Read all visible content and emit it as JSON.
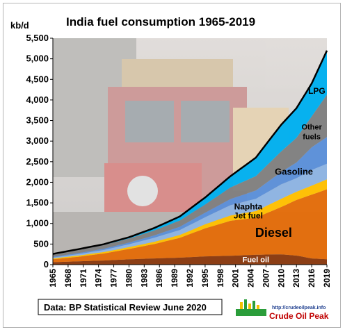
{
  "chart_data": {
    "type": "area",
    "title": "India fuel consumption  1965-2019",
    "unit_label": "kb/d",
    "source": "Data: BP Statistical Review June 2020",
    "logo": {
      "url": "http://crudeoilpeak.info",
      "name": "Crude Oil Peak"
    },
    "ylim": [
      0,
      5500
    ],
    "yticks": [
      0,
      500,
      1000,
      1500,
      2000,
      2500,
      3000,
      3500,
      4000,
      4500,
      5000,
      5500
    ],
    "xlim": [
      1965,
      2019
    ],
    "xticks": [
      1965,
      1968,
      1971,
      1974,
      1977,
      1980,
      1983,
      1986,
      1989,
      1992,
      1995,
      1998,
      2001,
      2004,
      2007,
      2010,
      2013,
      2016,
      2019
    ],
    "stacked": true,
    "colors": {
      "Fuel oil": "#8a3a0f",
      "Diesel": "#e36c0a",
      "Jet fuel": "#ffc000",
      "Naphta": "#8db4e2",
      "Gasoline": "#5b8fd9",
      "Other fuels": "#808080",
      "LPG": "#00b0f0",
      "total_line": "#000000"
    },
    "series": [
      {
        "name": "Fuel oil",
        "keyframes": [
          [
            1965,
            60
          ],
          [
            1970,
            80
          ],
          [
            1975,
            100
          ],
          [
            1980,
            130
          ],
          [
            1985,
            150
          ],
          [
            1990,
            170
          ],
          [
            1995,
            200
          ],
          [
            2000,
            215
          ],
          [
            2005,
            240
          ],
          [
            2010,
            250
          ],
          [
            2013,
            220
          ],
          [
            2016,
            150
          ],
          [
            2019,
            130
          ]
        ]
      },
      {
        "name": "Diesel",
        "keyframes": [
          [
            1965,
            70
          ],
          [
            1970,
            110
          ],
          [
            1975,
            170
          ],
          [
            1980,
            250
          ],
          [
            1985,
            350
          ],
          [
            1990,
            480
          ],
          [
            1995,
            680
          ],
          [
            2000,
            850
          ],
          [
            2005,
            900
          ],
          [
            2008,
            1050
          ],
          [
            2010,
            1150
          ],
          [
            2013,
            1350
          ],
          [
            2016,
            1550
          ],
          [
            2019,
            1700
          ]
        ]
      },
      {
        "name": "Jet fuel",
        "keyframes": [
          [
            1965,
            20
          ],
          [
            1970,
            30
          ],
          [
            1975,
            35
          ],
          [
            1980,
            45
          ],
          [
            1985,
            55
          ],
          [
            1990,
            70
          ],
          [
            1995,
            100
          ],
          [
            2000,
            130
          ],
          [
            2005,
            160
          ],
          [
            2010,
            200
          ],
          [
            2013,
            200
          ],
          [
            2016,
            220
          ],
          [
            2019,
            240
          ]
        ]
      },
      {
        "name": "Naphta",
        "keyframes": [
          [
            1965,
            20
          ],
          [
            1970,
            35
          ],
          [
            1975,
            50
          ],
          [
            1980,
            70
          ],
          [
            1985,
            100
          ],
          [
            1990,
            120
          ],
          [
            1995,
            170
          ],
          [
            2000,
            250
          ],
          [
            2005,
            300
          ],
          [
            2010,
            350
          ],
          [
            2013,
            330
          ],
          [
            2016,
            380
          ],
          [
            2019,
            380
          ]
        ]
      },
      {
        "name": "Gasoline",
        "keyframes": [
          [
            1965,
            20
          ],
          [
            1970,
            25
          ],
          [
            1975,
            30
          ],
          [
            1980,
            40
          ],
          [
            1985,
            55
          ],
          [
            1990,
            80
          ],
          [
            1995,
            110
          ],
          [
            2000,
            150
          ],
          [
            2005,
            200
          ],
          [
            2010,
            300
          ],
          [
            2013,
            380
          ],
          [
            2016,
            550
          ],
          [
            2019,
            650
          ]
        ]
      },
      {
        "name": "Other fuels",
        "keyframes": [
          [
            1965,
            60
          ],
          [
            1970,
            80
          ],
          [
            1975,
            90
          ],
          [
            1980,
            100
          ],
          [
            1985,
            120
          ],
          [
            1990,
            150
          ],
          [
            1995,
            200
          ],
          [
            2000,
            280
          ],
          [
            2005,
            350
          ],
          [
            2010,
            500
          ],
          [
            2013,
            600
          ],
          [
            2016,
            750
          ],
          [
            2019,
            1030
          ]
        ]
      },
      {
        "name": "LPG",
        "keyframes": [
          [
            1965,
            10
          ],
          [
            1970,
            15
          ],
          [
            1975,
            20
          ],
          [
            1980,
            30
          ],
          [
            1985,
            60
          ],
          [
            1990,
            100
          ],
          [
            1995,
            170
          ],
          [
            2000,
            275
          ],
          [
            2005,
            450
          ],
          [
            2010,
            650
          ],
          [
            2013,
            720
          ],
          [
            2016,
            800
          ],
          [
            2019,
            1070
          ]
        ]
      }
    ],
    "labels": [
      {
        "text": "LPG",
        "series": "LPG",
        "color": "#000000",
        "size": 12
      },
      {
        "text": "Other",
        "series": "Other fuels",
        "color": "#000000",
        "size": 11
      },
      {
        "text": "fuels",
        "series": "Other fuels",
        "color": "#000000",
        "size": 11
      },
      {
        "text": "Gasoline",
        "series": "Gasoline",
        "color": "#000000",
        "size": 13
      },
      {
        "text": "Naphta",
        "series": "Naphta",
        "color": "#000000",
        "size": 12
      },
      {
        "text": "Jet fuel",
        "series": "Jet fuel",
        "color": "#000000",
        "size": 12
      },
      {
        "text": "Diesel",
        "series": "Diesel",
        "color": "#000000",
        "size": 18
      },
      {
        "text": "Fuel oil",
        "series": "Fuel oil",
        "color": "#ffffff",
        "size": 11
      }
    ]
  }
}
